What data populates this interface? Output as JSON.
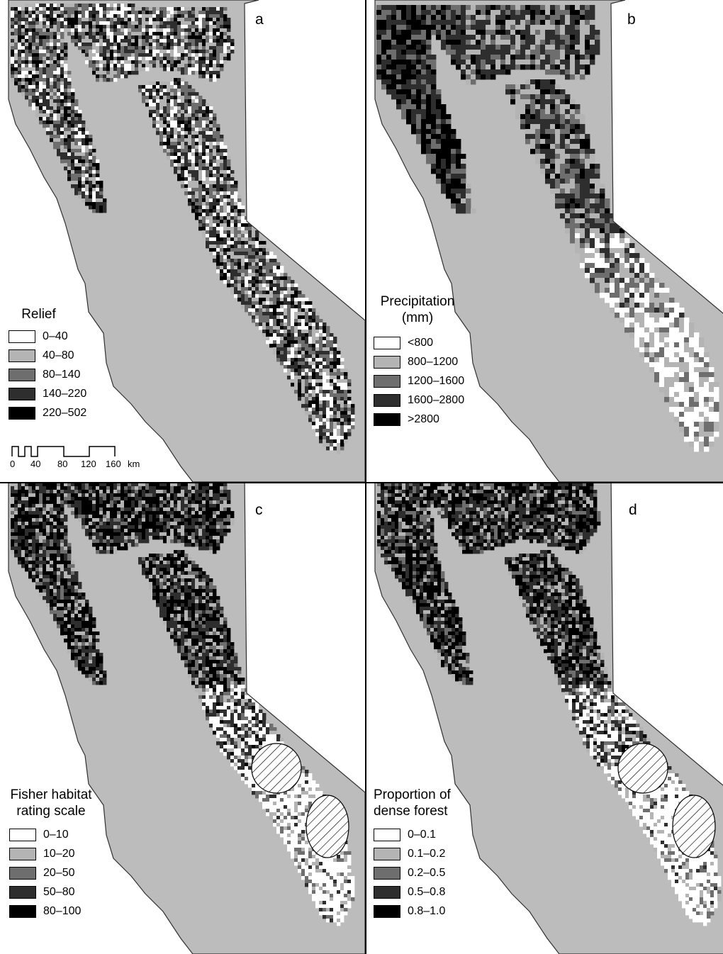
{
  "colors": {
    "land": "#bcbcbc",
    "outline": "#303030",
    "class_1": "#ffffff",
    "class_2": "#b4b4b4",
    "class_3": "#6e6e6e",
    "class_4": "#2e2e2e",
    "class_5": "#000000"
  },
  "panels": [
    {
      "letter": "a",
      "legend_title": "Relief",
      "classes": [
        "0–40",
        "40–80",
        "80–140",
        "140–220",
        "220–502"
      ],
      "scale_bar": {
        "ticks": [
          "0",
          "40",
          "80",
          "120",
          "160"
        ],
        "unit": "km"
      }
    },
    {
      "letter": "b",
      "legend_title": "Precipitation\n(mm)",
      "classes": [
        "<800",
        "800–1200",
        "1200–1600",
        "1600–2800",
        ">2800"
      ]
    },
    {
      "letter": "c",
      "legend_title": "Fisher habitat\nrating scale",
      "classes": [
        "0–10",
        "10–20",
        "20–50",
        "50–80",
        "80–100"
      ],
      "hatched_zones": 2
    },
    {
      "letter": "d",
      "legend_title": "Proportion of\ndense forest",
      "classes": [
        "0–0.1",
        "0.1–0.2",
        "0.2–0.5",
        "0.5–0.8",
        "0.8–1.0"
      ],
      "hatched_zones": 2
    }
  ]
}
